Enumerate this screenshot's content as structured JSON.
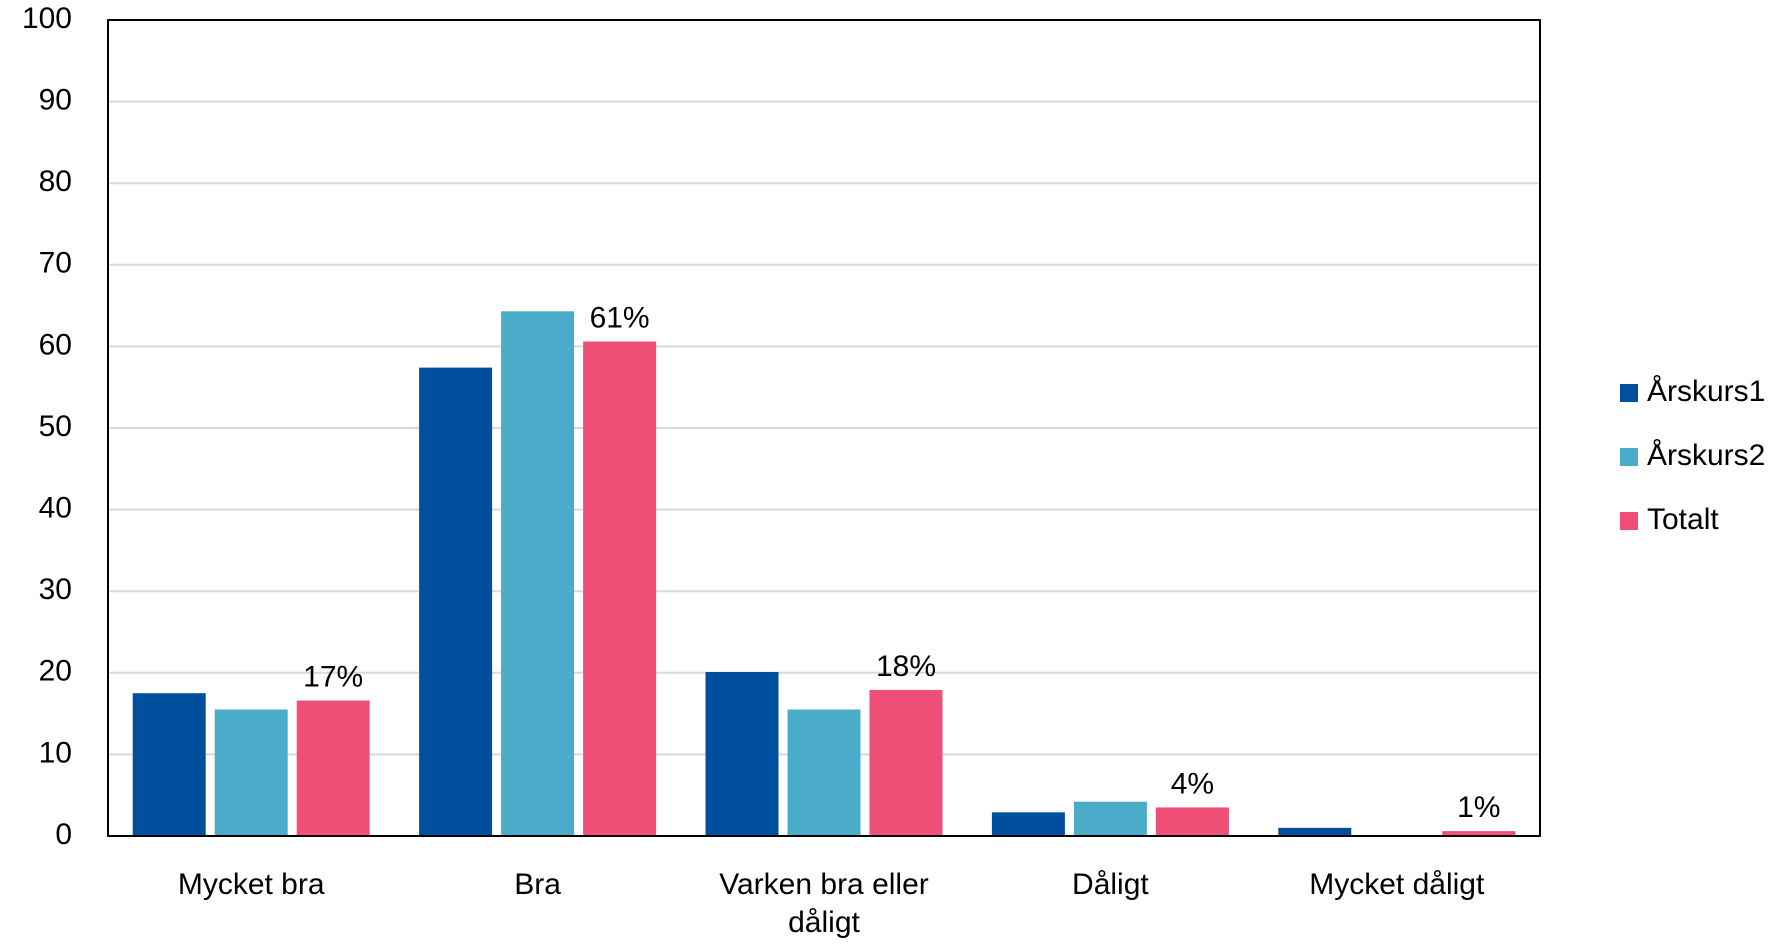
{
  "chart_data": {
    "type": "bar",
    "categories": [
      "Mycket bra",
      "Bra",
      "Varken bra eller dåligt",
      "Dåligt",
      "Mycket dåligt"
    ],
    "series": [
      {
        "name": "Årskurs1",
        "color": "#004f9f",
        "values": [
          17.5,
          57.4,
          20.1,
          2.9,
          1.0
        ]
      },
      {
        "name": "Årskurs2",
        "color": "#4bacc9",
        "values": [
          15.5,
          64.3,
          15.5,
          4.2,
          0
        ]
      },
      {
        "name": "Totalt",
        "color": "#ef4f76",
        "values": [
          16.6,
          60.6,
          17.9,
          3.5,
          0.6
        ],
        "value_labels": [
          "17%",
          "61%",
          "18%",
          "4%",
          "1%"
        ]
      }
    ],
    "ylim": [
      0,
      100
    ],
    "yticks": [
      0,
      10,
      20,
      30,
      40,
      50,
      60,
      70,
      80,
      90,
      100
    ],
    "grid": true,
    "legend": "right"
  }
}
